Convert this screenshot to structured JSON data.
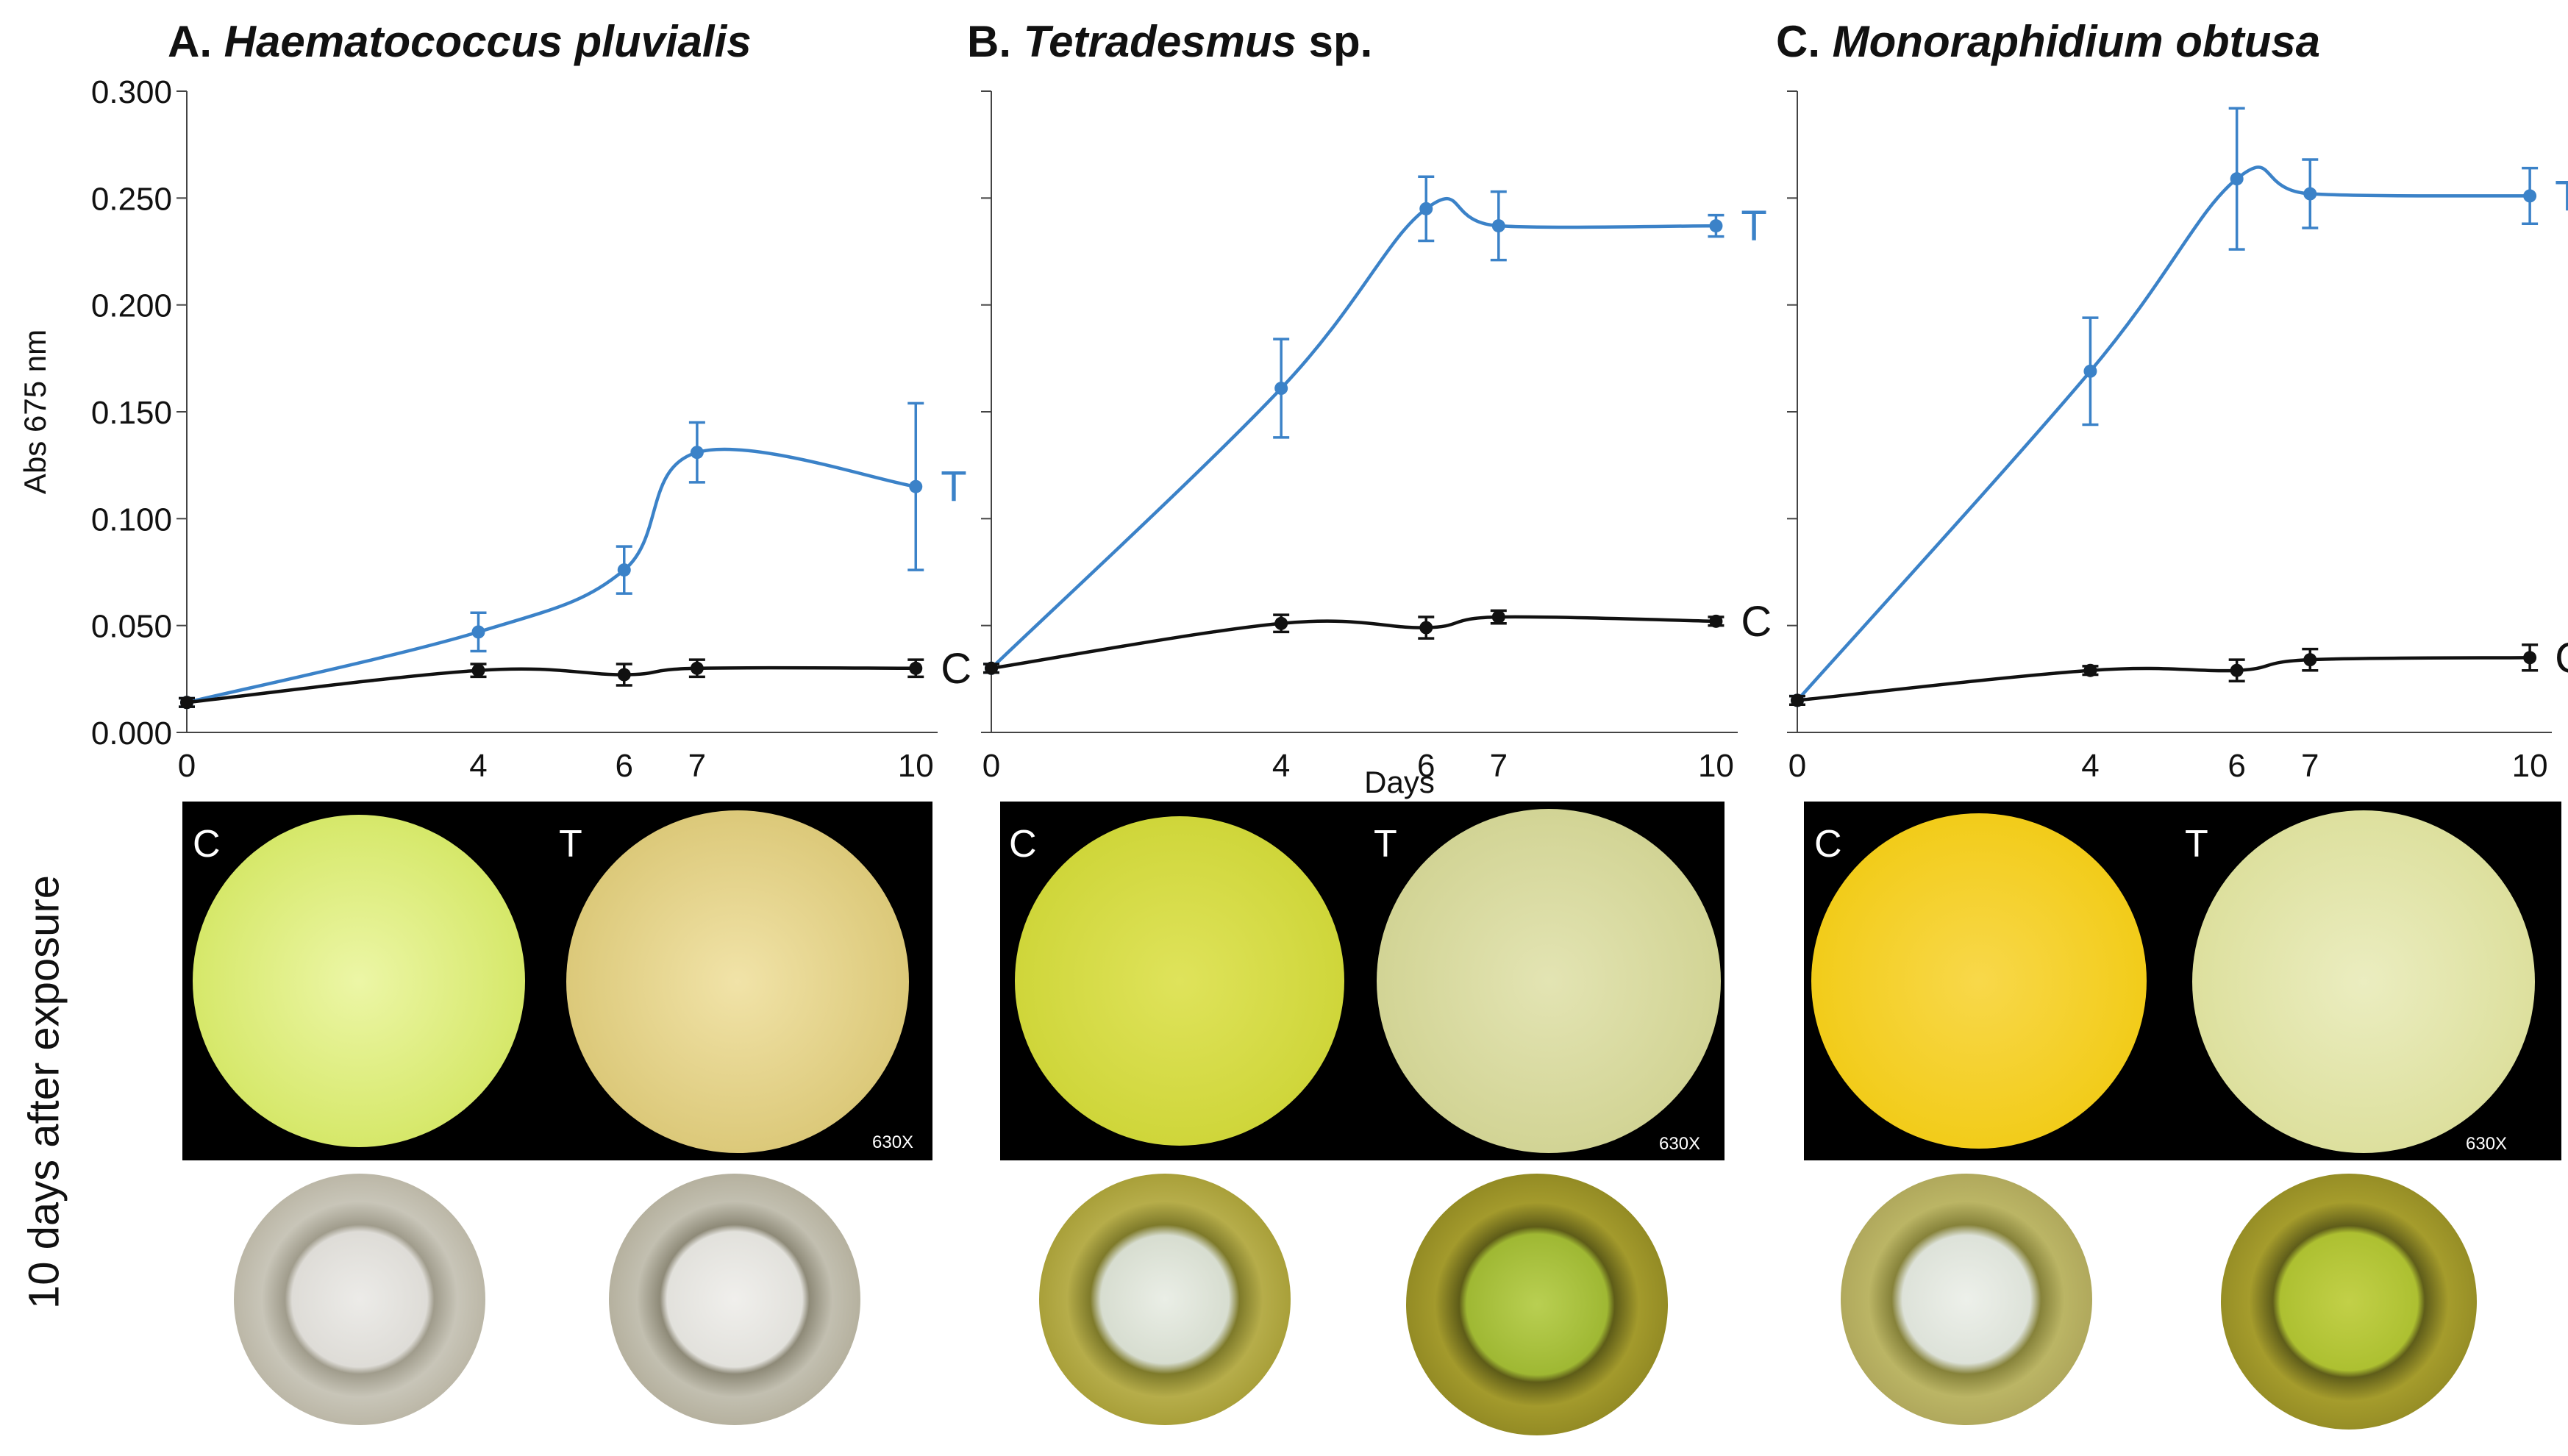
{
  "side_label": "10 days after exposure",
  "charts_shared": {
    "ylabel": "Abs 675 nm",
    "xlabel": "Days",
    "y_ticks": [
      "0.000",
      "0.050",
      "0.100",
      "0.150",
      "0.200",
      "0.250",
      "0.300"
    ],
    "x_ticks": [
      "0",
      "4",
      "6",
      "7",
      "10"
    ],
    "colors": {
      "treatment": "#3b82c8",
      "control": "#111111"
    }
  },
  "chart_data": [
    {
      "type": "line",
      "title_prefix": "A.",
      "title_species": "Haematococcus  pluvialis",
      "title_suffix": "",
      "ylim": [
        0,
        0.3
      ],
      "x": [
        0,
        4,
        6,
        7,
        10
      ],
      "series": [
        {
          "name": "T",
          "values": [
            0.014,
            0.047,
            0.076,
            0.131,
            0.115
          ],
          "errors": [
            0.002,
            0.009,
            0.011,
            0.014,
            0.039
          ]
        },
        {
          "name": "C",
          "values": [
            0.014,
            0.029,
            0.027,
            0.03,
            0.03
          ],
          "errors": [
            0.002,
            0.003,
            0.005,
            0.004,
            0.004
          ]
        }
      ]
    },
    {
      "type": "line",
      "title_prefix": "B.",
      "title_species": "Tetradesmus",
      "title_suffix": " sp.",
      "ylim": [
        0,
        0.3
      ],
      "x": [
        0,
        4,
        6,
        7,
        10
      ],
      "series": [
        {
          "name": "T",
          "values": [
            0.03,
            0.161,
            0.245,
            0.237,
            0.237
          ],
          "errors": [
            0.002,
            0.023,
            0.015,
            0.016,
            0.005
          ]
        },
        {
          "name": "C",
          "values": [
            0.03,
            0.051,
            0.049,
            0.054,
            0.052
          ],
          "errors": [
            0.002,
            0.004,
            0.005,
            0.003,
            0.002
          ]
        }
      ]
    },
    {
      "type": "line",
      "title_prefix": "C.",
      "title_species": "Monoraphidium obtusa",
      "title_suffix": "",
      "ylim": [
        0,
        0.3
      ],
      "x": [
        0,
        4,
        6,
        7,
        10
      ],
      "series": [
        {
          "name": "T",
          "values": [
            0.015,
            0.169,
            0.259,
            0.252,
            0.251
          ],
          "errors": [
            0.002,
            0.025,
            0.033,
            0.016,
            0.013
          ]
        },
        {
          "name": "C",
          "values": [
            0.015,
            0.029,
            0.029,
            0.034,
            0.035
          ],
          "errors": [
            0.002,
            0.002,
            0.005,
            0.005,
            0.006
          ]
        }
      ]
    }
  ],
  "micrographs": [
    {
      "left_label": "C",
      "right_label": "T",
      "magnification": "630X",
      "left_color": "#d6e86a",
      "right_color": "#dcc97a"
    },
    {
      "left_label": "C",
      "right_label": "T",
      "magnification": "630X",
      "left_color": "#cfd63a",
      "right_color": "#d2d495"
    },
    {
      "left_label": "C",
      "right_label": "T",
      "magnification": "630X",
      "left_color": "#f2cc1a",
      "right_color": "#dde09e"
    }
  ],
  "wells": [
    {
      "left_color": "#d7d6d2",
      "right_color": "#d9d8d4"
    },
    {
      "left_color": "#dde3d6",
      "right_color": "#a9c23a"
    },
    {
      "left_color": "#dfe3dc",
      "right_color": "#b7c735"
    }
  ]
}
